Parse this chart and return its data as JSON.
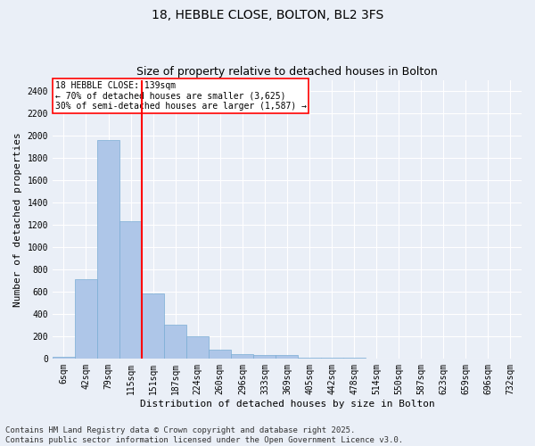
{
  "title1": "18, HEBBLE CLOSE, BOLTON, BL2 3FS",
  "title2": "Size of property relative to detached houses in Bolton",
  "xlabel": "Distribution of detached houses by size in Bolton",
  "ylabel": "Number of detached properties",
  "categories": [
    "6sqm",
    "42sqm",
    "79sqm",
    "115sqm",
    "151sqm",
    "187sqm",
    "224sqm",
    "260sqm",
    "296sqm",
    "333sqm",
    "369sqm",
    "405sqm",
    "442sqm",
    "478sqm",
    "514sqm",
    "550sqm",
    "587sqm",
    "623sqm",
    "659sqm",
    "696sqm",
    "732sqm"
  ],
  "values": [
    15,
    715,
    1960,
    1235,
    580,
    305,
    200,
    80,
    42,
    28,
    28,
    8,
    5,
    3,
    2,
    1,
    1,
    0,
    0,
    0,
    0
  ],
  "bar_color": "#aec6e8",
  "bar_edge_color": "#7aadd4",
  "vline_x": 4,
  "vline_color": "red",
  "annotation_title": "18 HEBBLE CLOSE: 139sqm",
  "annotation_line2": "← 70% of detached houses are smaller (3,625)",
  "annotation_line3": "30% of semi-detached houses are larger (1,587) →",
  "annotation_box_color": "red",
  "ylim": [
    0,
    2500
  ],
  "yticks": [
    0,
    200,
    400,
    600,
    800,
    1000,
    1200,
    1400,
    1600,
    1800,
    2000,
    2200,
    2400
  ],
  "footer1": "Contains HM Land Registry data © Crown copyright and database right 2025.",
  "footer2": "Contains public sector information licensed under the Open Government Licence v3.0.",
  "bg_color": "#eaeff7",
  "plot_bg_color": "#eaeff7",
  "title_fontsize": 10,
  "subtitle_fontsize": 9,
  "axis_label_fontsize": 8,
  "tick_fontsize": 7,
  "footer_fontsize": 6.5,
  "annotation_fontsize": 7
}
